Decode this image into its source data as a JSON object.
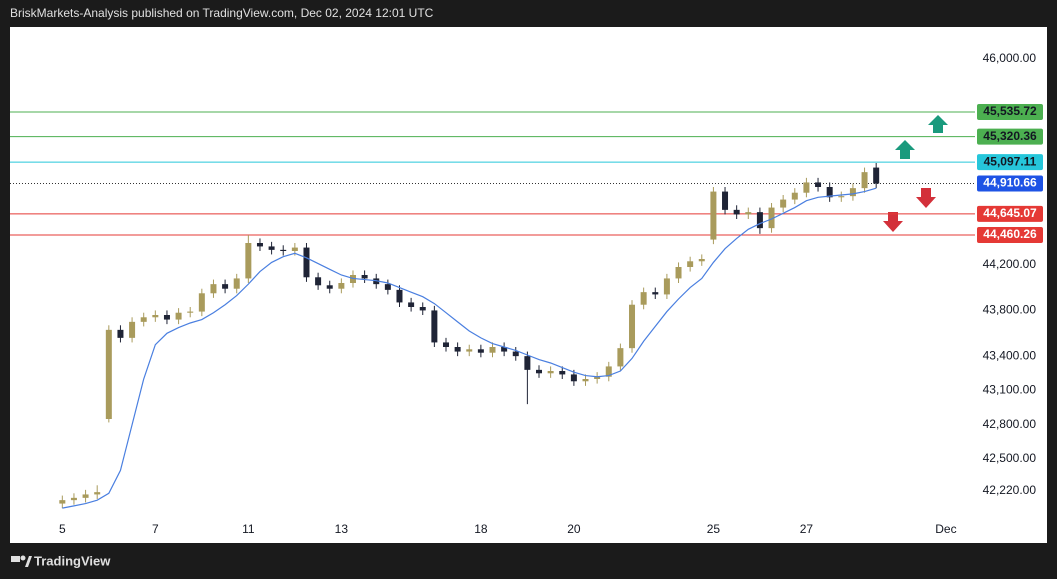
{
  "header": {
    "title": "BriskMarkets-Analysis published on TradingView.com, Dec 02, 2024 12:01 UTC"
  },
  "footer": {
    "brand": "TradingView"
  },
  "chart_data": {
    "type": "candlestick",
    "up_color": "#a99b5c",
    "down_color": "#1f2436",
    "open": [
      42110,
      42140,
      42160,
      42190,
      42850,
      43630,
      43560,
      43700,
      43740,
      43760,
      43720,
      43780,
      43790,
      43950,
      44030,
      43990,
      44080,
      44390,
      44360,
      44330,
      44320,
      44350,
      44090,
      44020,
      43990,
      44040,
      44110,
      44080,
      44030,
      43980,
      43870,
      43830,
      43800,
      43520,
      43480,
      43440,
      43460,
      43430,
      43480,
      43440,
      43400,
      43280,
      43250,
      43270,
      43240,
      43180,
      43200,
      43220,
      43310,
      43470,
      43850,
      43960,
      43940,
      44080,
      44180,
      44230,
      44420,
      44840,
      44680,
      44640,
      44660,
      44520,
      44700,
      44770,
      44830,
      44920,
      44880,
      44790,
      44800,
      44870,
      45050
    ],
    "high": [
      42180,
      42200,
      42230,
      42270,
      43670,
      43670,
      43740,
      43780,
      43800,
      43800,
      43820,
      43830,
      43990,
      44070,
      44070,
      44120,
      44460,
      44430,
      44400,
      44370,
      44390,
      44390,
      44130,
      44060,
      44080,
      44150,
      44150,
      44120,
      44070,
      44020,
      43910,
      43870,
      43840,
      43560,
      43520,
      43500,
      43500,
      43520,
      43520,
      43480,
      43440,
      43320,
      43310,
      43310,
      43280,
      43240,
      43260,
      43350,
      43510,
      43890,
      44000,
      44000,
      44120,
      44220,
      44270,
      44290,
      44880,
      44880,
      44720,
      44700,
      44700,
      44740,
      44810,
      44870,
      44960,
      44960,
      44920,
      44840,
      44910,
      45050,
      45090
    ],
    "low": [
      42070,
      42100,
      42120,
      42150,
      42820,
      43520,
      43520,
      43660,
      43700,
      43680,
      43680,
      43740,
      43750,
      43910,
      43950,
      43950,
      44040,
      44320,
      44290,
      44280,
      44280,
      44050,
      43980,
      43950,
      43950,
      44000,
      44040,
      43990,
      43940,
      43830,
      43790,
      43760,
      43480,
      43440,
      43400,
      43400,
      43390,
      43390,
      43400,
      43360,
      42980,
      43210,
      43210,
      43200,
      43140,
      43140,
      43160,
      43180,
      43270,
      43430,
      43810,
      43900,
      43900,
      44040,
      44140,
      44190,
      44380,
      44640,
      44600,
      44600,
      44470,
      44480,
      44660,
      44730,
      44790,
      44840,
      44750,
      44750,
      44760,
      44830,
      44870
    ],
    "close": [
      42140,
      42160,
      42190,
      42210,
      43630,
      43560,
      43700,
      43740,
      43760,
      43720,
      43780,
      43790,
      43950,
      44030,
      43990,
      44080,
      44390,
      44360,
      44330,
      44320,
      44350,
      44090,
      44020,
      43990,
      44040,
      44110,
      44080,
      44030,
      43980,
      43870,
      43830,
      43800,
      43520,
      43480,
      43440,
      43460,
      43430,
      43480,
      43440,
      43400,
      43280,
      43250,
      43270,
      43240,
      43180,
      43200,
      43220,
      43310,
      43470,
      43850,
      43960,
      43940,
      44080,
      44180,
      44230,
      44250,
      44840,
      44680,
      44640,
      44660,
      44520,
      44700,
      44770,
      44830,
      44920,
      44880,
      44790,
      44800,
      44870,
      45010,
      44910
    ],
    "ma": {
      "color": "#4a7fe0",
      "values": [
        42070,
        42090,
        42110,
        42140,
        42200,
        42400,
        42800,
        43200,
        43500,
        43600,
        43650,
        43690,
        43720,
        43780,
        43850,
        43930,
        44030,
        44140,
        44220,
        44270,
        44300,
        44260,
        44210,
        44160,
        44110,
        44080,
        44070,
        44060,
        44040,
        44000,
        43960,
        43920,
        43860,
        43780,
        43700,
        43620,
        43560,
        43510,
        43480,
        43450,
        43410,
        43370,
        43340,
        43300,
        43260,
        43230,
        43220,
        43230,
        43270,
        43380,
        43530,
        43660,
        43790,
        43900,
        44000,
        44080,
        44220,
        44340,
        44430,
        44510,
        44560,
        44600,
        44650,
        44700,
        44760,
        44790,
        44800,
        44810,
        44820,
        44840,
        44870
      ]
    },
    "levels": [
      {
        "value": 45535.72,
        "label": "45,535.72",
        "color": "#4caf50",
        "label_color": "#131722"
      },
      {
        "value": 45320.36,
        "label": "45,320.36",
        "color": "#4caf50",
        "label_color": "#131722"
      },
      {
        "value": 45097.11,
        "label": "45,097.11",
        "color": "#26c6da",
        "label_color": "#131722"
      },
      {
        "value": 44910.66,
        "label": "44,910.66",
        "color": "#1e53e5",
        "label_color": "#ffffff",
        "style": "dotted"
      },
      {
        "value": 44645.07,
        "label": "44,645.07",
        "color": "#e53935",
        "label_color": "#ffffff"
      },
      {
        "value": 44460.26,
        "label": "44,460.26",
        "color": "#e53935",
        "label_color": "#ffffff"
      }
    ],
    "xlim": [
      -4.5,
      78.5
    ],
    "xticks": [
      {
        "value": 0,
        "label": "5"
      },
      {
        "value": 8,
        "label": "7"
      },
      {
        "value": 16,
        "label": "11"
      },
      {
        "value": 24,
        "label": "13"
      },
      {
        "value": 36,
        "label": "18"
      },
      {
        "value": 44,
        "label": "20"
      },
      {
        "value": 56,
        "label": "25"
      },
      {
        "value": 64,
        "label": "27"
      },
      {
        "value": 76,
        "label": "Dec"
      }
    ],
    "ylim": [
      42010,
      46280
    ],
    "yticks": [
      {
        "value": 46000,
        "label": "46,000.00"
      },
      {
        "value": 44200,
        "label": "44,200.00"
      },
      {
        "value": 43800,
        "label": "43,800.00"
      },
      {
        "value": 43400,
        "label": "43,400.00"
      },
      {
        "value": 43100,
        "label": "43,100.00"
      },
      {
        "value": 42800,
        "label": "42,800.00"
      },
      {
        "value": 42500,
        "label": "42,500.00"
      },
      {
        "value": 42220,
        "label": "42,220.00"
      }
    ]
  }
}
